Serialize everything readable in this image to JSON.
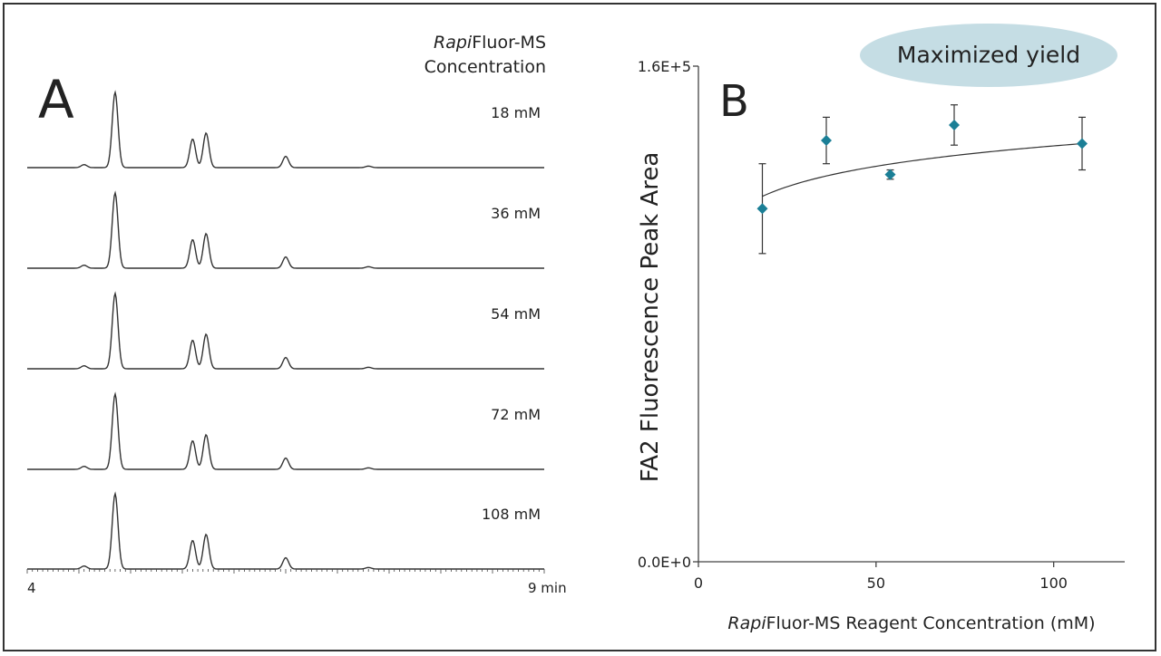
{
  "panel_a": {
    "letter": "A",
    "legend_title_italic": "Rapi",
    "legend_title_rest": "Fluor-MS",
    "legend_title_line2": "Concentration",
    "x_start_label": "4",
    "x_end_label": "9 min"
  },
  "panel_b": {
    "letter": "B",
    "badge": "Maximized yield",
    "ylabel": "FA2 Fluorescence Peak Area",
    "xlabel_italic": "Rapi",
    "xlabel_rest": "Fluor-MS Reagent Concentration (mM)"
  },
  "colors": {
    "marker": "#1b7f96",
    "badge_fill": "#c5dde4",
    "trace": "#333333",
    "axis": "#444444"
  },
  "chart_data": [
    {
      "type": "line",
      "title": "",
      "xlabel": "",
      "ylabel": "",
      "xlim": [
        4,
        9
      ],
      "x_unit": "min",
      "traces": [
        {
          "name": "18 mM"
        },
        {
          "name": "36 mM"
        },
        {
          "name": "54 mM"
        },
        {
          "name": "72 mM"
        },
        {
          "name": "108 mM"
        }
      ],
      "peaks_relative": [
        {
          "x": 4.55,
          "height": 0.04
        },
        {
          "x": 4.85,
          "height": 1.0
        },
        {
          "x": 5.6,
          "height": 0.38
        },
        {
          "x": 5.73,
          "height": 0.46
        },
        {
          "x": 6.5,
          "height": 0.15
        },
        {
          "x": 7.3,
          "height": 0.02
        }
      ]
    },
    {
      "type": "scatter",
      "title": "",
      "xlabel": "RapiFluor-MS Reagent Concentration (mM)",
      "ylabel": "FA2 Fluorescence Peak Area",
      "xlim": [
        0,
        120
      ],
      "ylim": [
        0,
        160000
      ],
      "xticks": [
        0,
        50,
        100
      ],
      "yticks": [
        "0.0E+0",
        "1.6E+5"
      ],
      "points": [
        {
          "x": 18,
          "y": 114000,
          "err": 14500
        },
        {
          "x": 36,
          "y": 136000,
          "err": 7500
        },
        {
          "x": 54,
          "y": 125000,
          "err": 1500
        },
        {
          "x": 72,
          "y": 141000,
          "err": 6500
        },
        {
          "x": 108,
          "y": 135000,
          "err": 8500
        }
      ],
      "trendline": {
        "type": "logarithmic",
        "a": 90500,
        "b": 9500
      }
    }
  ]
}
